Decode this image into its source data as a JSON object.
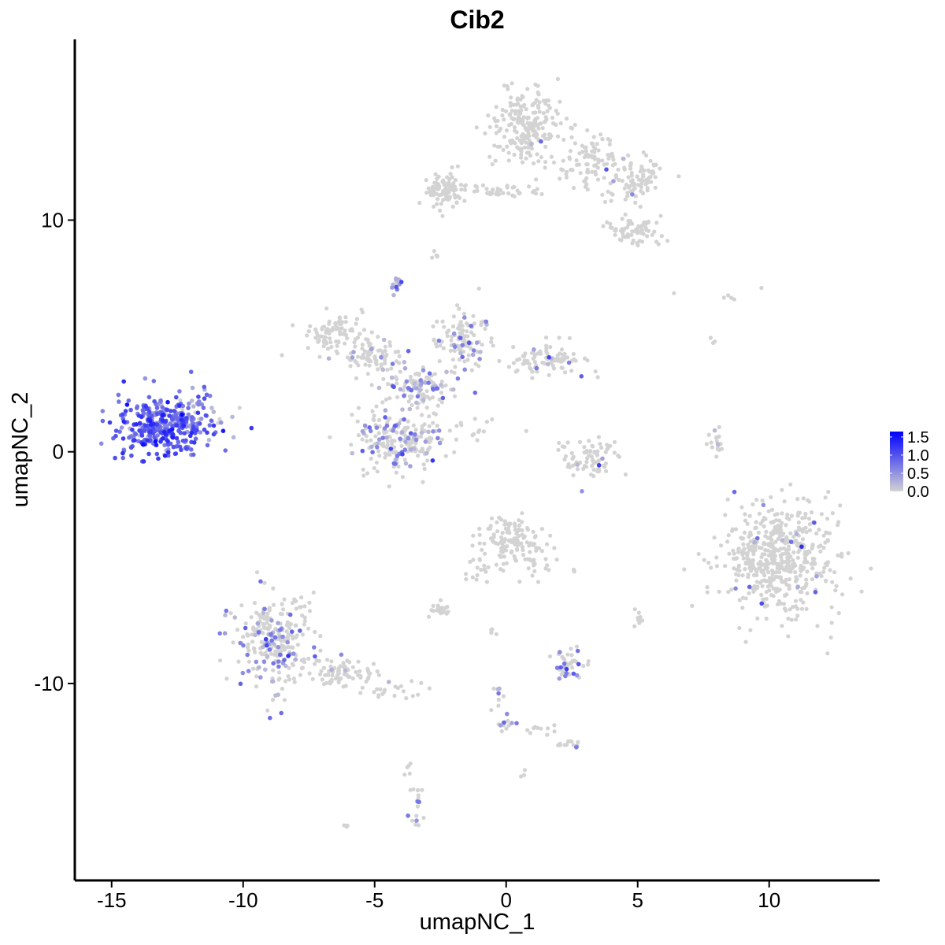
{
  "chart_data": {
    "type": "scatter",
    "title": "Cib2",
    "xlabel": "umapNC_1",
    "ylabel": "umapNC_2",
    "xlim": [
      -16.4,
      14.2
    ],
    "ylim": [
      -18.5,
      17.8
    ],
    "xticks": [
      -15,
      -10,
      -5,
      0,
      5,
      10
    ],
    "xtick_labels": [
      "-15",
      "-10",
      "-5",
      "0",
      "5",
      "10"
    ],
    "yticks": [
      -10,
      0,
      10
    ],
    "ytick_labels": [
      "-10",
      "0",
      "10"
    ],
    "grid": false,
    "legend": {
      "placement": "right",
      "type": "colorbar",
      "ticks": [
        0.0,
        0.5,
        1.0,
        1.5
      ],
      "tick_labels": [
        "0.0",
        "0.5",
        "1.0",
        "1.5"
      ],
      "range": [
        0,
        1.65
      ],
      "low_color": "#D3D3D3",
      "high_color": "#0000FF"
    },
    "point_color_scale": {
      "low": "#D3D3D3",
      "high": "#0000FF"
    },
    "clusters": [
      {
        "x": -13.0,
        "y": 1.1,
        "sx": 0.95,
        "sy": 0.65,
        "n": 340,
        "expr_frac": 1.0,
        "expr_mean": 0.85
      },
      {
        "x": -11.6,
        "y": 2.4,
        "sx": 0.25,
        "sy": 0.35,
        "n": 12,
        "expr_frac": 0.9,
        "expr_mean": 0.6
      },
      {
        "x": -12.0,
        "y": 1.5,
        "sx": 0.6,
        "sy": 0.25,
        "n": 40,
        "expr_frac": 0.5,
        "expr_mean": 0.4
      },
      {
        "x": -4.0,
        "y": 0.4,
        "sx": 0.9,
        "sy": 0.65,
        "n": 210,
        "expr_frac": 0.28,
        "expr_mean": 0.5
      },
      {
        "x": -3.3,
        "y": 2.8,
        "sx": 0.65,
        "sy": 0.5,
        "n": 120,
        "expr_frac": 0.3,
        "expr_mean": 0.5
      },
      {
        "x": -1.5,
        "y": 4.8,
        "sx": 0.55,
        "sy": 0.7,
        "n": 110,
        "expr_frac": 0.2,
        "expr_mean": 0.5
      },
      {
        "x": 1.6,
        "y": 4.0,
        "sx": 0.75,
        "sy": 0.35,
        "n": 90,
        "expr_frac": 0.06,
        "expr_mean": 0.4
      },
      {
        "x": -6.6,
        "y": 5.0,
        "sx": 0.65,
        "sy": 0.45,
        "n": 90,
        "expr_frac": 0.04,
        "expr_mean": 0.4
      },
      {
        "x": -5.0,
        "y": 4.1,
        "sx": 0.6,
        "sy": 0.35,
        "n": 70,
        "expr_frac": 0.1,
        "expr_mean": 0.4
      },
      {
        "x": -4.2,
        "y": 7.2,
        "sx": 0.12,
        "sy": 0.15,
        "n": 12,
        "expr_frac": 0.85,
        "expr_mean": 0.5
      },
      {
        "x": -1.3,
        "y": 0.8,
        "sx": 0.55,
        "sy": 0.45,
        "n": 14,
        "expr_frac": 0.1,
        "expr_mean": 0.3
      },
      {
        "x": 0.8,
        "y": 14.0,
        "sx": 0.65,
        "sy": 0.75,
        "n": 220,
        "expr_frac": 0.01,
        "expr_mean": 0.4
      },
      {
        "x": 3.3,
        "y": 12.6,
        "sx": 0.6,
        "sy": 0.55,
        "n": 90,
        "expr_frac": 0.02,
        "expr_mean": 0.6
      },
      {
        "x": 4.9,
        "y": 11.6,
        "sx": 0.6,
        "sy": 0.5,
        "n": 90,
        "expr_frac": 0.04,
        "expr_mean": 0.9
      },
      {
        "x": 5.0,
        "y": 9.5,
        "sx": 0.6,
        "sy": 0.35,
        "n": 70,
        "expr_frac": 0.02,
        "expr_mean": 0.4
      },
      {
        "x": -2.3,
        "y": 11.3,
        "sx": 0.35,
        "sy": 0.35,
        "n": 90,
        "expr_frac": 0.0,
        "expr_mean": 0
      },
      {
        "x": -0.5,
        "y": 11.2,
        "sx": 0.9,
        "sy": 0.15,
        "n": 40,
        "expr_frac": 0.0,
        "expr_mean": 0
      },
      {
        "x": 10.4,
        "y": -4.6,
        "sx": 1.1,
        "sy": 1.2,
        "n": 500,
        "expr_frac": 0.02,
        "expr_mean": 0.6
      },
      {
        "x": 9.2,
        "y": -4.7,
        "sx": 0.35,
        "sy": 0.45,
        "n": 35,
        "expr_frac": 0.0,
        "expr_mean": 0
      },
      {
        "x": -8.8,
        "y": -8.2,
        "sx": 0.75,
        "sy": 1.0,
        "n": 260,
        "expr_frac": 0.24,
        "expr_mean": 0.5
      },
      {
        "x": -6.4,
        "y": -9.5,
        "sx": 0.8,
        "sy": 0.35,
        "n": 80,
        "expr_frac": 0.06,
        "expr_mean": 0.4
      },
      {
        "x": -4.5,
        "y": -10.3,
        "sx": 0.6,
        "sy": 0.2,
        "n": 22,
        "expr_frac": 0.05,
        "expr_mean": 0.3
      },
      {
        "x": 0.0,
        "y": -3.8,
        "sx": 0.55,
        "sy": 0.5,
        "n": 120,
        "expr_frac": 0.0,
        "expr_mean": 0
      },
      {
        "x": 1.2,
        "y": -4.6,
        "sx": 0.35,
        "sy": 0.45,
        "n": 25,
        "expr_frac": 0.0,
        "expr_mean": 0
      },
      {
        "x": -1.1,
        "y": -5.2,
        "sx": 0.3,
        "sy": 0.3,
        "n": 15,
        "expr_frac": 0.0,
        "expr_mean": 0
      },
      {
        "x": 3.1,
        "y": -0.3,
        "sx": 0.55,
        "sy": 0.45,
        "n": 80,
        "expr_frac": 0.03,
        "expr_mean": 0.4
      },
      {
        "x": 2.4,
        "y": -9.2,
        "sx": 0.3,
        "sy": 0.35,
        "n": 45,
        "expr_frac": 0.25,
        "expr_mean": 0.6
      },
      {
        "x": -2.6,
        "y": -6.8,
        "sx": 0.2,
        "sy": 0.12,
        "n": 22,
        "expr_frac": 0.0,
        "expr_mean": 0
      },
      {
        "x": 2.4,
        "y": -12.6,
        "sx": 0.25,
        "sy": 0.12,
        "n": 14,
        "expr_frac": 0.2,
        "expr_mean": 0.5
      },
      {
        "x": 0.0,
        "y": -11.7,
        "sx": 0.15,
        "sy": 0.15,
        "n": 12,
        "expr_frac": 0.5,
        "expr_mean": 0.4
      },
      {
        "x": -0.3,
        "y": -10.6,
        "sx": 0.15,
        "sy": 0.3,
        "n": 8,
        "expr_frac": 0.3,
        "expr_mean": 0.4
      },
      {
        "x": 1.3,
        "y": -12.0,
        "sx": 0.35,
        "sy": 0.12,
        "n": 10,
        "expr_frac": 0.0,
        "expr_mean": 0
      },
      {
        "x": -3.4,
        "y": -15.3,
        "sx": 0.15,
        "sy": 0.4,
        "n": 18,
        "expr_frac": 0.3,
        "expr_mean": 0.6
      },
      {
        "x": -3.6,
        "y": -13.8,
        "sx": 0.1,
        "sy": 0.2,
        "n": 5,
        "expr_frac": 0.0,
        "expr_mean": 0
      },
      {
        "x": 8.0,
        "y": 0.4,
        "sx": 0.15,
        "sy": 0.5,
        "n": 18,
        "expr_frac": 0.15,
        "expr_mean": 0.4
      },
      {
        "x": 5.0,
        "y": -7.1,
        "sx": 0.12,
        "sy": 0.15,
        "n": 10,
        "expr_frac": 0.0,
        "expr_mean": 0
      },
      {
        "x": -2.7,
        "y": 8.7,
        "sx": 0.1,
        "sy": 0.25,
        "n": 5,
        "expr_frac": 0.1,
        "expr_mean": 0.3
      },
      {
        "x": 8.1,
        "y": 6.7,
        "sx": 1.0,
        "sy": 0.2,
        "n": 6,
        "expr_frac": 0.0,
        "expr_mean": 0
      },
      {
        "x": 7.8,
        "y": 4.7,
        "sx": 0.08,
        "sy": 0.15,
        "n": 3,
        "expr_frac": 0.0,
        "expr_mean": 0
      },
      {
        "x": -6.1,
        "y": -16.2,
        "sx": 0.06,
        "sy": 0.06,
        "n": 3,
        "expr_frac": 0.0,
        "expr_mean": 0
      },
      {
        "x": 0.7,
        "y": -13.9,
        "sx": 0.08,
        "sy": 0.06,
        "n": 3,
        "expr_frac": 0.0,
        "expr_mean": 0
      },
      {
        "x": 2.7,
        "y": -5.1,
        "sx": 0.1,
        "sy": 0.05,
        "n": 3,
        "expr_frac": 0.0,
        "expr_mean": 0
      },
      {
        "x": -0.5,
        "y": -7.5,
        "sx": 0.1,
        "sy": 0.3,
        "n": 4,
        "expr_frac": 0.0,
        "expr_mean": 0
      }
    ]
  }
}
